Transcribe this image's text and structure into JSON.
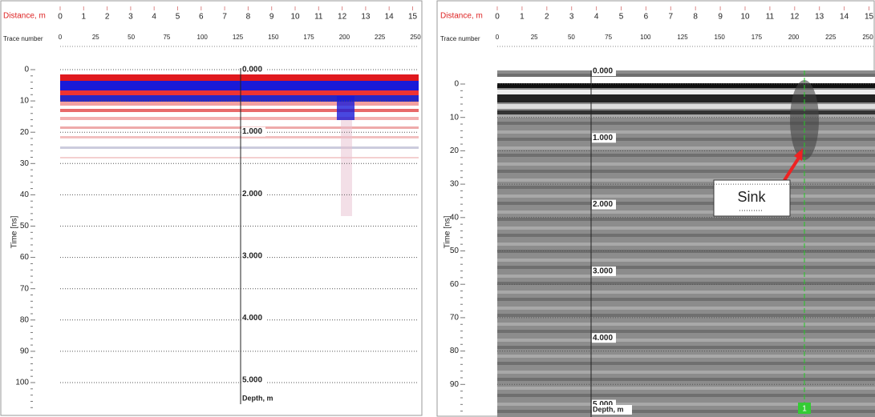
{
  "panels": [
    {
      "distance_label": "Distance, m",
      "distance_ticks": [
        "0",
        "1",
        "2",
        "3",
        "4",
        "5",
        "6",
        "7",
        "8",
        "9",
        "10",
        "11",
        "12",
        "13",
        "14",
        "15"
      ],
      "trace_label": "Trace number",
      "trace_ticks": [
        "0",
        "25",
        "50",
        "75",
        "100",
        "125",
        "150",
        "175",
        "200",
        "225",
        "250"
      ],
      "time_label": "Time [ns]",
      "time_ticks": [
        "0",
        "10",
        "20",
        "30",
        "40",
        "50",
        "60",
        "70",
        "80",
        "90",
        "100"
      ],
      "depth_ticks": [
        "0.000",
        "1.000",
        "2.000",
        "3.000",
        "4.000",
        "5.000"
      ],
      "depth_label": "Depth, m"
    },
    {
      "distance_label": "Distance, m",
      "distance_ticks": [
        "0",
        "1",
        "2",
        "3",
        "4",
        "5",
        "6",
        "7",
        "8",
        "9",
        "10",
        "11",
        "12",
        "13",
        "14",
        "15"
      ],
      "trace_label": "Trace number",
      "trace_ticks": [
        "0",
        "25",
        "50",
        "75",
        "100",
        "125",
        "150",
        "175",
        "200",
        "225",
        "250"
      ],
      "time_label": "Time [ns]",
      "time_ticks": [
        "0",
        "10",
        "20",
        "30",
        "40",
        "50",
        "60",
        "70",
        "80",
        "90"
      ],
      "depth_ticks": [
        "0.000",
        "1.000",
        "2.000",
        "3.000",
        "4.000",
        "5.000"
      ],
      "depth_label": "Depth, m",
      "annotation": "Sink",
      "marker": "1"
    }
  ]
}
